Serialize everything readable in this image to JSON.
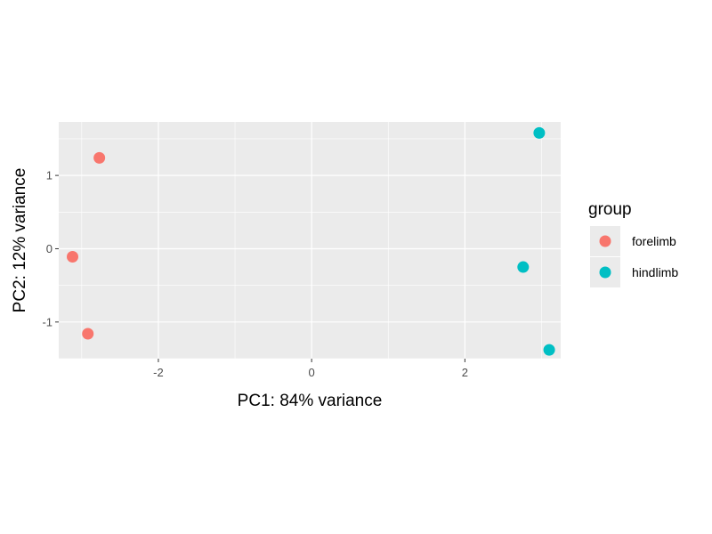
{
  "chart_data": {
    "type": "scatter",
    "xlabel": "PC1: 84% variance",
    "ylabel": "PC2: 12% variance",
    "xlim": [
      -3.3,
      3.25
    ],
    "ylim": [
      -1.5,
      1.73
    ],
    "x_ticks": [
      -2,
      0,
      2
    ],
    "y_ticks": [
      -1,
      0,
      1
    ],
    "x_tick_labels": [
      "-2",
      "0",
      "2"
    ],
    "y_tick_labels": [
      "-1",
      "0",
      "1"
    ],
    "grid": true,
    "legend": {
      "title": "group",
      "position": "right"
    },
    "series": [
      {
        "name": "forelimb",
        "color": "#F8766D",
        "points": [
          {
            "x": -2.77,
            "y": 1.24
          },
          {
            "x": -3.12,
            "y": -0.11
          },
          {
            "x": -2.92,
            "y": -1.16
          }
        ]
      },
      {
        "name": "hindlimb",
        "color": "#00BFC4",
        "points": [
          {
            "x": 2.97,
            "y": 1.58
          },
          {
            "x": 2.76,
            "y": -0.25
          },
          {
            "x": 3.1,
            "y": -1.38
          }
        ]
      }
    ]
  }
}
